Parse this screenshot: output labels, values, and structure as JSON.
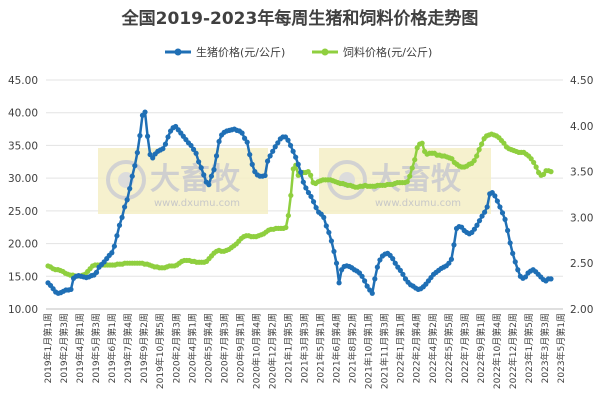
{
  "chart_data": {
    "type": "line",
    "title": "全国2019-2023年每周生猪和饲料价格走势图",
    "legend_position": "top",
    "y_left": {
      "min": 10,
      "max": 45,
      "step": 5,
      "ticks": [
        "10.00",
        "15.00",
        "20.00",
        "25.00",
        "30.00",
        "35.00",
        "40.00",
        "45.00"
      ]
    },
    "y_right": {
      "min": 2.0,
      "max": 4.5,
      "step": 0.5,
      "ticks": [
        "2.00",
        "2.50",
        "3.00",
        "3.50",
        "4.00",
        "4.50"
      ]
    },
    "x_ticks": [
      "2019年1月第1周",
      "2019年2月第3周",
      "2019年4月第1周",
      "2019年5月第3周",
      "2019年6月第1周",
      "2019年7月第4周",
      "2019年9月第2周",
      "2019年10月第5周",
      "2020年2月第3周",
      "2020年4月第1周",
      "2020年5月第4周",
      "2020年7月第3周",
      "2020年9月第1周",
      "2020年10月第4周",
      "2020年12月第2周",
      "2021年1月第5周",
      "2021年3月第3周",
      "2021年5月第1周",
      "2021年6月第4周",
      "2021年8月第2周",
      "2021年10月第1周",
      "2021年11月第3周",
      "2022年1月第1周",
      "2022年2月第4周",
      "2022年4月第2周",
      "2022年5月第5周",
      "2022年7月第3周",
      "2022年9月第1周",
      "2022年10月第4周",
      "2022年12月第2周",
      "2023年1月第5周",
      "2023年3月第3周",
      "2023年5月第1周"
    ],
    "grid": "horizontal",
    "series": [
      {
        "name": "生猪价格(元/公斤)",
        "axis": "left",
        "color": "#1f6fb5",
        "marker": "circle",
        "values": [
          14.0,
          13.6,
          13.1,
          12.6,
          12.4,
          12.5,
          12.7,
          12.9,
          12.9,
          13.0,
          14.7,
          15.0,
          15.1,
          15.0,
          14.9,
          14.8,
          14.9,
          15.1,
          15.2,
          15.6,
          16.4,
          16.8,
          17.2,
          17.7,
          18.2,
          18.6,
          19.6,
          21.2,
          22.8,
          24.0,
          25.6,
          26.7,
          28.4,
          30.3,
          31.9,
          33.9,
          36.5,
          39.6,
          40.1,
          36.4,
          33.6,
          33.1,
          33.7,
          34.1,
          34.3,
          34.5,
          35.2,
          36.3,
          37.2,
          37.7,
          37.9,
          37.4,
          36.9,
          36.4,
          35.9,
          35.4,
          35.0,
          34.4,
          33.8,
          32.5,
          31.6,
          30.5,
          29.4,
          29.0,
          30.3,
          31.3,
          33.4,
          35.6,
          36.6,
          37.0,
          37.2,
          37.3,
          37.4,
          37.5,
          37.3,
          37.2,
          36.9,
          36.1,
          35.5,
          33.6,
          32.1,
          31.0,
          30.5,
          30.3,
          30.3,
          30.4,
          32.6,
          33.4,
          34.1,
          34.8,
          35.4,
          36.0,
          36.3,
          36.3,
          35.8,
          35.0,
          34.1,
          33.2,
          32.1,
          30.9,
          29.4,
          28.5,
          27.8,
          27.2,
          26.4,
          25.5,
          24.8,
          24.5,
          24.0,
          22.7,
          21.7,
          20.4,
          18.8,
          17.0,
          14.0,
          16.0,
          16.5,
          16.6,
          16.5,
          16.3,
          16.0,
          15.8,
          15.5,
          15.0,
          14.3,
          13.5,
          12.9,
          12.4,
          14.6,
          16.4,
          17.5,
          18.1,
          18.4,
          18.5,
          18.2,
          17.7,
          17.0,
          16.4,
          15.9,
          15.3,
          14.6,
          14.1,
          13.7,
          13.5,
          13.2,
          13.0,
          13.1,
          13.4,
          13.8,
          14.3,
          14.8,
          15.3,
          15.6,
          15.9,
          16.2,
          16.4,
          16.6,
          17.0,
          17.6,
          19.8,
          22.3,
          22.6,
          22.5,
          22.0,
          21.7,
          21.5,
          21.7,
          22.2,
          22.8,
          23.5,
          24.2,
          24.8,
          25.6,
          27.6,
          27.8,
          27.3,
          26.5,
          25.6,
          24.7,
          23.7,
          22.0,
          20.1,
          18.5,
          17.2,
          16.0,
          15.0,
          14.7,
          14.9,
          15.5,
          15.8,
          16.0,
          15.7,
          15.3,
          14.9,
          14.5,
          14.3,
          14.6,
          14.6
        ]
      },
      {
        "name": "饲料价格(元/公斤)",
        "axis": "right",
        "color": "#8fcf3f",
        "marker": "circle",
        "values": [
          2.47,
          2.46,
          2.44,
          2.43,
          2.43,
          2.42,
          2.41,
          2.39,
          2.38,
          2.37,
          2.37,
          2.36,
          2.36,
          2.36,
          2.37,
          2.38,
          2.41,
          2.44,
          2.47,
          2.48,
          2.48,
          2.48,
          2.48,
          2.48,
          2.48,
          2.48,
          2.48,
          2.48,
          2.49,
          2.49,
          2.49,
          2.5,
          2.5,
          2.5,
          2.5,
          2.5,
          2.5,
          2.5,
          2.5,
          2.49,
          2.49,
          2.48,
          2.47,
          2.46,
          2.46,
          2.45,
          2.45,
          2.45,
          2.46,
          2.47,
          2.47,
          2.47,
          2.48,
          2.5,
          2.52,
          2.53,
          2.53,
          2.53,
          2.52,
          2.52,
          2.51,
          2.51,
          2.51,
          2.51,
          2.52,
          2.55,
          2.58,
          2.61,
          2.63,
          2.64,
          2.63,
          2.63,
          2.64,
          2.65,
          2.67,
          2.69,
          2.71,
          2.74,
          2.77,
          2.79,
          2.8,
          2.8,
          2.79,
          2.79,
          2.79,
          2.8,
          2.81,
          2.82,
          2.84,
          2.86,
          2.87,
          2.87,
          2.88,
          2.88,
          2.88,
          2.88,
          2.89,
          3.02,
          3.24,
          3.53,
          3.57,
          3.46,
          3.47,
          3.49,
          3.49,
          3.5,
          3.46,
          3.38,
          3.37,
          3.39,
          3.4,
          3.41,
          3.41,
          3.41,
          3.41,
          3.4,
          3.39,
          3.38,
          3.37,
          3.37,
          3.36,
          3.35,
          3.35,
          3.34,
          3.33,
          3.33,
          3.34,
          3.34,
          3.35,
          3.34,
          3.34,
          3.34,
          3.34,
          3.35,
          3.35,
          3.35,
          3.35,
          3.36,
          3.36,
          3.36,
          3.37,
          3.38,
          3.38,
          3.38,
          3.38,
          3.39,
          3.45,
          3.54,
          3.63,
          3.76,
          3.8,
          3.81,
          3.72,
          3.69,
          3.7,
          3.7,
          3.7,
          3.68,
          3.68,
          3.67,
          3.67,
          3.66,
          3.65,
          3.64,
          3.6,
          3.58,
          3.56,
          3.55,
          3.55,
          3.56,
          3.58,
          3.59,
          3.62,
          3.67,
          3.74,
          3.8,
          3.86,
          3.89,
          3.9,
          3.91,
          3.9,
          3.89,
          3.87,
          3.84,
          3.81,
          3.77,
          3.75,
          3.74,
          3.73,
          3.72,
          3.71,
          3.71,
          3.71,
          3.69,
          3.67,
          3.64,
          3.6,
          3.55,
          3.49,
          3.46,
          3.47,
          3.51,
          3.51,
          3.5
        ]
      }
    ],
    "watermark": {
      "brand": "大畜牧",
      "url": "www.dxumu.com"
    }
  }
}
